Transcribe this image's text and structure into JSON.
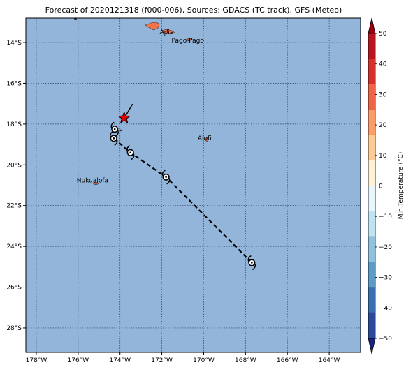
{
  "title": "Forecast of 2020121318 (f000-006), Sources: GDACS (TC track), GFS (Meteo)",
  "map": {
    "lon_range": [
      -178.5,
      -162.5
    ],
    "lat_range": [
      -29.2,
      -12.8
    ],
    "ocean_color": "#92b5d9",
    "land_color": "#f4734a",
    "x_ticks": [
      "178°W",
      "176°W",
      "174°W",
      "172°W",
      "170°W",
      "168°W",
      "166°W",
      "164°W"
    ],
    "y_ticks": [
      "14°S",
      "16°S",
      "18°S",
      "20°S",
      "22°S",
      "24°S",
      "26°S",
      "28°S"
    ],
    "places": [
      {
        "name": "Apia",
        "lon": -171.77,
        "lat": -13.83
      },
      {
        "name": "Pago Pago",
        "lon": -170.7,
        "lat": -14.28
      },
      {
        "name": "Alofi",
        "lon": -169.92,
        "lat": -19.06
      },
      {
        "name": "Nukualofa",
        "lon": -175.2,
        "lat": -21.14
      }
    ],
    "current_position": {
      "lon": -173.8,
      "lat": -17.7
    },
    "track": [
      {
        "lon": -173.8,
        "lat": -17.7
      },
      {
        "lon": -174.25,
        "lat": -18.25
      },
      {
        "lon": -174.3,
        "lat": -18.7
      },
      {
        "lon": -173.5,
        "lat": -19.4
      },
      {
        "lon": -171.8,
        "lat": -20.6
      },
      {
        "lon": -167.7,
        "lat": -24.8
      }
    ]
  },
  "colorbar": {
    "label": "Min Temperature (°C)",
    "ticks": [
      "50",
      "40",
      "30",
      "20",
      "10",
      "0",
      "−10",
      "−20",
      "−30",
      "−40",
      "−50"
    ],
    "colors": [
      "#99000d",
      "#b7161f",
      "#d6302b",
      "#ef6548",
      "#fc9c69",
      "#fdcb95",
      "#fff1d6",
      "#e6f6fb",
      "#bfe3f1",
      "#8fc2de",
      "#5d9bc9",
      "#3a6fb1",
      "#2b4a9b",
      "#1a237e"
    ]
  }
}
